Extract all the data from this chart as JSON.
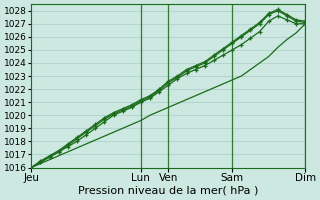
{
  "title": "Pression niveau de la mer( hPa )",
  "bg_color": "#cce8e0",
  "grid_color": "#aacccc",
  "line_color": "#1a6b1a",
  "ylim": [
    1016,
    1028.5
  ],
  "yticks": [
    1016,
    1017,
    1018,
    1019,
    1020,
    1021,
    1022,
    1023,
    1024,
    1025,
    1026,
    1027,
    1028
  ],
  "day_labels": [
    "Jeu",
    "Lun",
    "Ven",
    "Sam",
    "Dim"
  ],
  "day_positions": [
    0,
    12,
    15,
    22,
    30
  ],
  "vline_positions": [
    12,
    15,
    22,
    30
  ],
  "n_points": 31,
  "xlabel_fontsize": 7.5,
  "ylabel_fontsize": 6.5,
  "series": {
    "straight": [
      1016.0,
      1016.3,
      1016.6,
      1016.9,
      1017.2,
      1017.5,
      1017.8,
      1018.1,
      1018.4,
      1018.7,
      1019.0,
      1019.3,
      1019.6,
      1020.0,
      1020.3,
      1020.6,
      1020.9,
      1021.2,
      1021.5,
      1021.8,
      1022.1,
      1022.4,
      1022.7,
      1023.0,
      1023.5,
      1024.0,
      1024.5,
      1025.2,
      1025.8,
      1026.3,
      1027.0
    ],
    "upper1": [
      1016.0,
      1016.4,
      1016.8,
      1017.2,
      1017.6,
      1018.0,
      1018.5,
      1019.0,
      1019.5,
      1020.0,
      1020.3,
      1020.6,
      1021.0,
      1021.3,
      1021.8,
      1022.3,
      1022.8,
      1023.2,
      1023.5,
      1023.8,
      1024.2,
      1024.6,
      1025.0,
      1025.4,
      1025.9,
      1026.4,
      1027.2,
      1027.6,
      1027.3,
      1027.0,
      1027.0
    ],
    "upper2": [
      1016.0,
      1016.4,
      1016.8,
      1017.2,
      1017.7,
      1018.2,
      1018.7,
      1019.2,
      1019.7,
      1020.1,
      1020.4,
      1020.7,
      1021.1,
      1021.4,
      1021.9,
      1022.5,
      1022.9,
      1023.4,
      1023.7,
      1024.0,
      1024.5,
      1025.0,
      1025.5,
      1026.0,
      1026.5,
      1027.0,
      1027.7,
      1028.0,
      1027.6,
      1027.2,
      1027.1
    ],
    "upper3": [
      1016.0,
      1016.5,
      1016.9,
      1017.3,
      1017.8,
      1018.3,
      1018.8,
      1019.3,
      1019.8,
      1020.2,
      1020.5,
      1020.8,
      1021.2,
      1021.5,
      1022.0,
      1022.6,
      1023.0,
      1023.5,
      1023.8,
      1024.1,
      1024.6,
      1025.1,
      1025.6,
      1026.1,
      1026.6,
      1027.1,
      1027.8,
      1028.1,
      1027.7,
      1027.3,
      1027.2
    ]
  }
}
